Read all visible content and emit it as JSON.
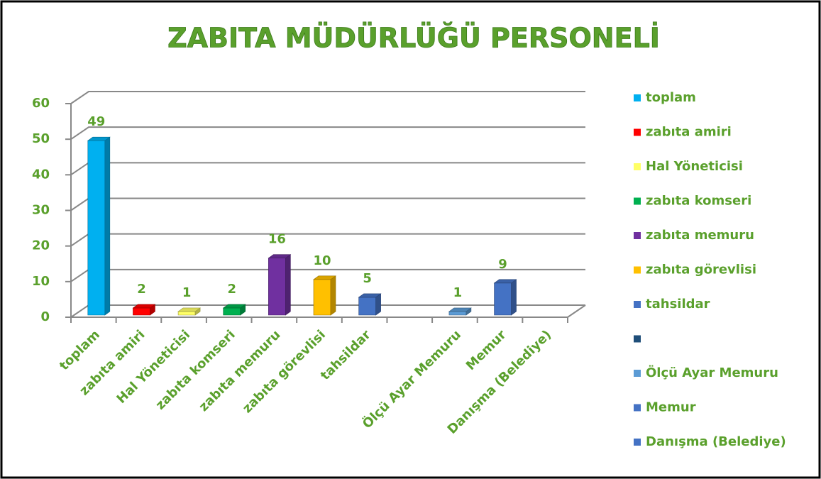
{
  "chart_data": {
    "type": "bar3d",
    "title": "ZABITA MÜDÜRLÜĞÜ PERSONELİ",
    "categories": [
      "toplam",
      "zabıta amiri",
      "Hal Yöneticisi",
      "zabıta komseri",
      "zabıta memuru",
      "zabıta görevlisi",
      "tahsildar",
      null,
      "Ölçü Ayar Memuru",
      "Memur",
      "Danışma (Belediye)"
    ],
    "values": [
      49,
      2,
      1,
      2,
      16,
      10,
      5,
      null,
      1,
      9,
      null
    ],
    "colors": [
      "#00b0f0",
      "#ff0000",
      "#ffff66",
      "#00b050",
      "#7030a0",
      "#ffc000",
      "#4472c4",
      "#1f4e79",
      "#5b9bd5",
      "#4472c4",
      "#4472c4"
    ],
    "ylim": [
      0,
      60
    ],
    "yticks": [
      0,
      10,
      20,
      30,
      40,
      50,
      60
    ],
    "grid": true,
    "legend": "right"
  }
}
